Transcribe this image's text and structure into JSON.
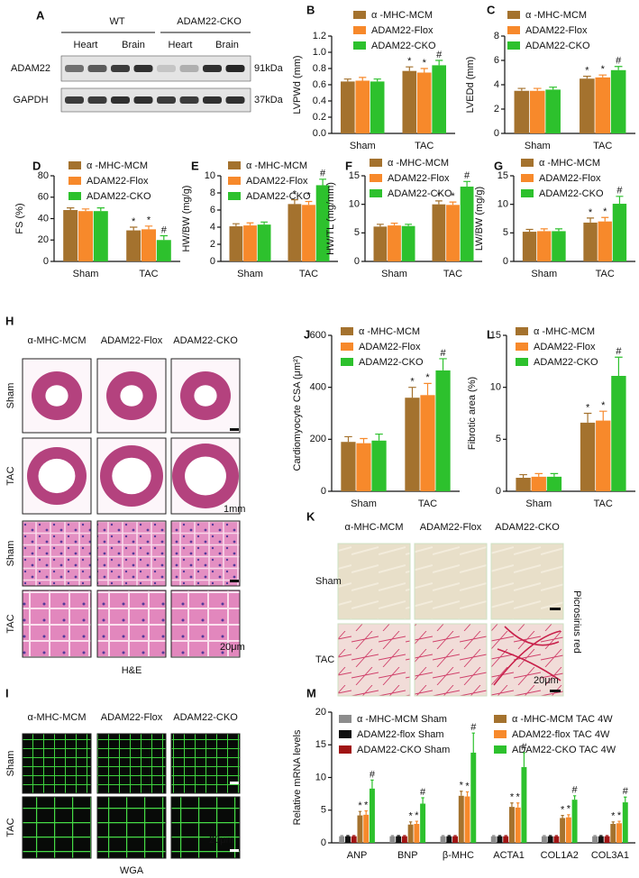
{
  "chart_data": [
    {
      "type": "bar",
      "panel": "B",
      "ylabel": "LVPWd (mm)",
      "categories": [
        "Sham",
        "TAC"
      ],
      "ylim": [
        0,
        1.2
      ],
      "yticks": [
        {
          "value": 0,
          "label": "0.0"
        },
        0.2,
        0.4,
        0.6,
        0.8,
        {
          "value": 1,
          "label": "1.0"
        },
        1.2
      ],
      "series": [
        {
          "name": "α -MHC-MCM",
          "color": "#a4722e",
          "values": [
            0.64,
            0.77
          ],
          "errors": [
            0.03,
            0.05
          ],
          "markers": [
            null,
            "*"
          ]
        },
        {
          "name": "ADAM22-Flox",
          "color": "#f7892b",
          "values": [
            0.65,
            0.75
          ],
          "errors": [
            0.04,
            0.05
          ],
          "markers": [
            null,
            "*"
          ]
        },
        {
          "name": "ADAM22-CKO",
          "color": "#2dc12d",
          "values": [
            0.64,
            0.84
          ],
          "errors": [
            0.03,
            0.06
          ],
          "markers": [
            null,
            "#"
          ]
        }
      ]
    },
    {
      "type": "bar",
      "panel": "C",
      "ylabel": "LVEDd (mm)",
      "categories": [
        "Sham",
        "TAC"
      ],
      "ylim": [
        0,
        8
      ],
      "yticks": [
        0,
        2,
        4,
        6,
        8
      ],
      "series": [
        {
          "name": "α -MHC-MCM",
          "color": "#a4722e",
          "values": [
            3.5,
            4.5
          ],
          "errors": [
            0.2,
            0.2
          ],
          "markers": [
            null,
            "*"
          ]
        },
        {
          "name": "ADAM22-Flox",
          "color": "#f7892b",
          "values": [
            3.5,
            4.6
          ],
          "errors": [
            0.2,
            0.2
          ],
          "markers": [
            null,
            "*"
          ]
        },
        {
          "name": "ADAM22-CKO",
          "color": "#2dc12d",
          "values": [
            3.6,
            5.2
          ],
          "errors": [
            0.2,
            0.3
          ],
          "markers": [
            null,
            "#"
          ]
        }
      ]
    },
    {
      "type": "bar",
      "panel": "D",
      "ylabel": "FS (%)",
      "categories": [
        "Sham",
        "TAC"
      ],
      "ylim": [
        0,
        80
      ],
      "yticks": [
        0,
        20,
        40,
        60,
        80
      ],
      "series": [
        {
          "name": "α -MHC-MCM",
          "color": "#a4722e",
          "values": [
            48,
            29
          ],
          "errors": [
            2,
            3
          ],
          "markers": [
            null,
            "*"
          ]
        },
        {
          "name": "ADAM22-Flox",
          "color": "#f7892b",
          "values": [
            47,
            30
          ],
          "errors": [
            2,
            3
          ],
          "markers": [
            null,
            "*"
          ]
        },
        {
          "name": "ADAM22-CKO",
          "color": "#2dc12d",
          "values": [
            47,
            20
          ],
          "errors": [
            3,
            4
          ],
          "markers": [
            null,
            "#"
          ]
        }
      ]
    },
    {
      "type": "bar",
      "panel": "E",
      "ylabel": "HW/BW (mg/g)",
      "categories": [
        "Sham",
        "TAC"
      ],
      "ylim": [
        0,
        10
      ],
      "yticks": [
        0,
        2,
        4,
        6,
        8,
        10
      ],
      "series": [
        {
          "name": "α -MHC-MCM",
          "color": "#a4722e",
          "values": [
            4.1,
            6.7
          ],
          "errors": [
            0.3,
            0.5
          ],
          "markers": [
            null,
            "*"
          ]
        },
        {
          "name": "ADAM22-Flox",
          "color": "#f7892b",
          "values": [
            4.2,
            6.6
          ],
          "errors": [
            0.3,
            0.4
          ],
          "markers": [
            null,
            "*"
          ]
        },
        {
          "name": "ADAM22-CKO",
          "color": "#2dc12d",
          "values": [
            4.3,
            8.9
          ],
          "errors": [
            0.3,
            0.7
          ],
          "markers": [
            null,
            "#"
          ]
        }
      ]
    },
    {
      "type": "bar",
      "panel": "F",
      "ylabel": "HW/TL (mg/mm)",
      "categories": [
        "Sham",
        "TAC"
      ],
      "ylim": [
        0,
        15
      ],
      "yticks": [
        0,
        5,
        10,
        15
      ],
      "series": [
        {
          "name": "α -MHC-MCM",
          "color": "#a4722e",
          "values": [
            6.1,
            10.0
          ],
          "errors": [
            0.4,
            0.6
          ],
          "markers": [
            null,
            "*"
          ]
        },
        {
          "name": "ADAM22-Flox",
          "color": "#f7892b",
          "values": [
            6.3,
            9.9
          ],
          "errors": [
            0.4,
            0.5
          ],
          "markers": [
            null,
            "*"
          ]
        },
        {
          "name": "ADAM22-CKO",
          "color": "#2dc12d",
          "values": [
            6.2,
            13.1
          ],
          "errors": [
            0.3,
            0.9
          ],
          "markers": [
            null,
            "#"
          ]
        }
      ]
    },
    {
      "type": "bar",
      "panel": "G",
      "ylabel": "LW/BW (mg/g)",
      "categories": [
        "Sham",
        "TAC"
      ],
      "ylim": [
        0,
        15
      ],
      "yticks": [
        0,
        5,
        10,
        15
      ],
      "series": [
        {
          "name": "α -MHC-MCM",
          "color": "#a4722e",
          "values": [
            5.2,
            6.8
          ],
          "errors": [
            0.4,
            0.8
          ],
          "markers": [
            null,
            "*"
          ]
        },
        {
          "name": "ADAM22-Flox",
          "color": "#f7892b",
          "values": [
            5.3,
            7.0
          ],
          "errors": [
            0.4,
            0.7
          ],
          "markers": [
            null,
            "*"
          ]
        },
        {
          "name": "ADAM22-CKO",
          "color": "#2dc12d",
          "values": [
            5.3,
            10.1
          ],
          "errors": [
            0.4,
            1.3
          ],
          "markers": [
            null,
            "#"
          ]
        }
      ]
    },
    {
      "type": "bar",
      "panel": "J",
      "ylabel": "Cardiomyocyte CSA (μm²)",
      "categories": [
        "Sham",
        "TAC"
      ],
      "ylim": [
        0,
        600
      ],
      "yticks": [
        0,
        200,
        400,
        600
      ],
      "series": [
        {
          "name": "α -MHC-MCM",
          "color": "#a4722e",
          "values": [
            190,
            360
          ],
          "errors": [
            20,
            40
          ],
          "markers": [
            null,
            "*"
          ]
        },
        {
          "name": "ADAM22-Flox",
          "color": "#f7892b",
          "values": [
            185,
            370
          ],
          "errors": [
            18,
            45
          ],
          "markers": [
            null,
            "*"
          ]
        },
        {
          "name": "ADAM22-CKO",
          "color": "#2dc12d",
          "values": [
            195,
            465
          ],
          "errors": [
            25,
            45
          ],
          "markers": [
            null,
            "#"
          ]
        }
      ]
    },
    {
      "type": "bar",
      "panel": "L",
      "ylabel": "Fibrotic area (%)",
      "categories": [
        "Sham",
        "TAC"
      ],
      "ylim": [
        0,
        15
      ],
      "yticks": [
        0,
        5,
        10,
        15
      ],
      "series": [
        {
          "name": "α -MHC-MCM",
          "color": "#a4722e",
          "values": [
            1.3,
            6.6
          ],
          "errors": [
            0.3,
            0.9
          ],
          "markers": [
            null,
            "*"
          ]
        },
        {
          "name": "ADAM22-Flox",
          "color": "#f7892b",
          "values": [
            1.4,
            6.8
          ],
          "errors": [
            0.3,
            0.9
          ],
          "markers": [
            null,
            "*"
          ]
        },
        {
          "name": "ADAM22-CKO",
          "color": "#2dc12d",
          "values": [
            1.4,
            11.1
          ],
          "errors": [
            0.3,
            1.8
          ],
          "markers": [
            null,
            "#"
          ]
        }
      ]
    },
    {
      "type": "bar",
      "panel": "M",
      "ylabel": "Relative mRNA levels",
      "categories": [
        "ANP",
        "BNP",
        "β-MHC",
        "ACTA1",
        "COL1A2",
        "COL3A1"
      ],
      "ylim": [
        0,
        20
      ],
      "yticks": [
        0,
        5,
        10,
        15,
        20
      ],
      "series": [
        {
          "name": "α -MHC-MCM Sham",
          "color": "#8c8c8c",
          "values": [
            1,
            1,
            1,
            1,
            1,
            1
          ],
          "errors": [
            0.1,
            0.1,
            0.1,
            0.1,
            0.1,
            0.1
          ],
          "markers": [
            null,
            null,
            null,
            null,
            null,
            null
          ]
        },
        {
          "name": "ADAM22-flox Sham",
          "color": "#111111",
          "values": [
            1,
            1,
            1,
            1,
            1,
            1
          ],
          "errors": [
            0.1,
            0.1,
            0.1,
            0.1,
            0.1,
            0.1
          ],
          "markers": [
            null,
            null,
            null,
            null,
            null,
            null
          ]
        },
        {
          "name": "ADAM22-CKO  Sham",
          "color": "#a01414",
          "values": [
            1,
            1,
            1,
            1,
            1,
            1
          ],
          "errors": [
            0.1,
            0.1,
            0.1,
            0.1,
            0.1,
            0.1
          ],
          "markers": [
            null,
            null,
            null,
            null,
            null,
            null
          ]
        },
        {
          "name": "α -MHC-MCM TAC 4W",
          "color": "#a4722e",
          "values": [
            4.2,
            2.8,
            7.2,
            5.5,
            3.8,
            2.9
          ],
          "errors": [
            0.6,
            0.4,
            0.7,
            0.6,
            0.4,
            0.3
          ],
          "markers": [
            "*",
            "*",
            "*",
            "*",
            "*",
            "*"
          ]
        },
        {
          "name": "ADAM22-flox TAC 4W",
          "color": "#f7892b",
          "values": [
            4.3,
            2.9,
            7.1,
            5.4,
            3.9,
            3.0
          ],
          "errors": [
            0.6,
            0.4,
            0.7,
            0.7,
            0.4,
            0.3
          ],
          "markers": [
            "*",
            "*",
            "*",
            "*",
            "*",
            "*"
          ]
        },
        {
          "name": "ADAM22-CKO TAC 4W",
          "color": "#2dc12d",
          "values": [
            8.3,
            6.0,
            13.8,
            11.6,
            6.6,
            6.2
          ],
          "errors": [
            1.3,
            0.9,
            3.0,
            2.2,
            0.6,
            0.8
          ],
          "markers": [
            "#",
            "#",
            "#",
            "#",
            "#",
            "#"
          ]
        }
      ]
    }
  ],
  "blot": {
    "panel": "A",
    "groups": [
      "WT",
      "ADAM22-CKO"
    ],
    "lanes": [
      "Heart",
      "Brain",
      "Heart",
      "Brain"
    ],
    "rows": [
      "ADAM22",
      "GAPDH"
    ],
    "sizes": [
      "91kDa",
      "37kDa"
    ]
  },
  "he": {
    "panel": "H",
    "columns": [
      "α-MHC-MCM",
      "ADAM22-Flox",
      "ADAM22-CKO"
    ],
    "rows": [
      "Sham",
      "TAC",
      "Sham",
      "TAC"
    ],
    "scales": [
      "1mm",
      "20μm"
    ],
    "caption": "H&E"
  },
  "sirius": {
    "panel": "K",
    "columns": [
      "α-MHC-MCM",
      "ADAM22-Flox",
      "ADAM22-CKO"
    ],
    "rows": [
      "Sham",
      "TAC"
    ],
    "scale": "20μm",
    "side": "Picrosirius red"
  },
  "wga": {
    "panel": "I",
    "columns": [
      "α-MHC-MCM",
      "ADAM22-Flox",
      "ADAM22-CKO"
    ],
    "rows": [
      "Sham",
      "TAC"
    ],
    "scale": "20μm",
    "caption": "WGA"
  }
}
